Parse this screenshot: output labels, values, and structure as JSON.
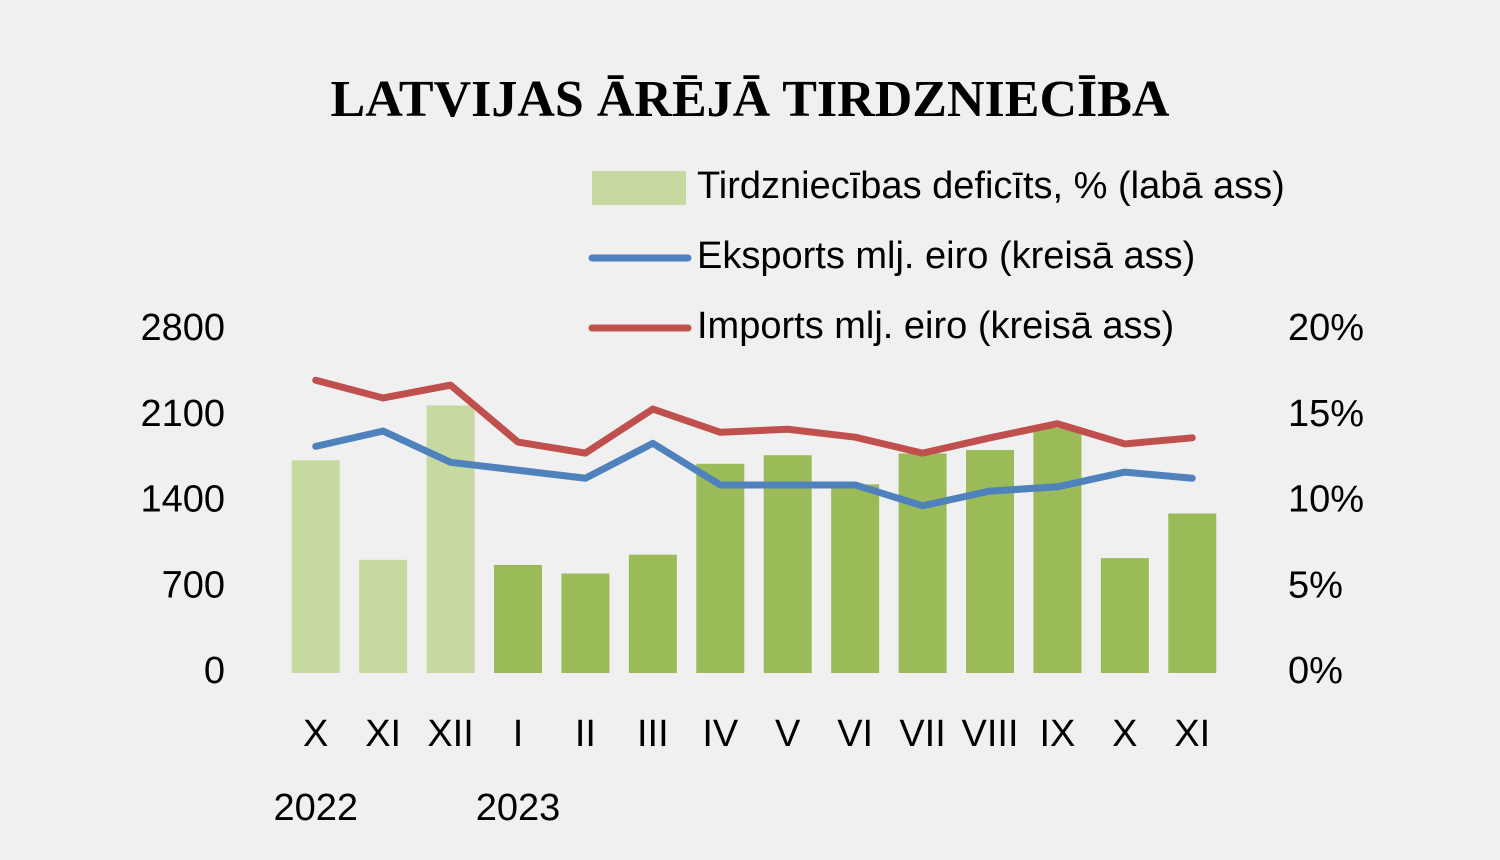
{
  "chart_data": {
    "type": "bar-line",
    "title": "LATVIJAS ĀRĒJĀ TIRDZNIECĪBA",
    "categories": [
      "X",
      "XI",
      "XII",
      "I",
      "II",
      "III",
      "IV",
      "V",
      "VI",
      "VII",
      "VIII",
      "IX",
      "X",
      "XI"
    ],
    "category_groups": [
      "2022",
      null,
      null,
      "2023",
      null,
      null,
      null,
      null,
      null,
      null,
      null,
      null,
      null,
      null
    ],
    "series": [
      {
        "name": "Tirdzniecības deficīts, % (labā ass)",
        "type": "bar",
        "axis": "y2",
        "color": "#9bbb59",
        "colors": [
          "#c6d9a0",
          "#c6d9a0",
          "#c6d9a0",
          "#9bbb59",
          "#9bbb59",
          "#9bbb59",
          "#9bbb59",
          "#9bbb59",
          "#9bbb59",
          "#9bbb59",
          "#9bbb59",
          "#9bbb59",
          "#9bbb59",
          "#9bbb59"
        ],
        "values": [
          12.4,
          6.6,
          15.6,
          6.3,
          5.8,
          6.9,
          12.2,
          12.7,
          11.0,
          12.8,
          13.0,
          14.3,
          6.7,
          9.3
        ]
      },
      {
        "name": "Eksports mlj. eiro (kreisā ass)",
        "type": "line",
        "color": "#4f81bd",
        "values": [
          1850,
          1975,
          1720,
          1655,
          1590,
          1875,
          1535,
          1535,
          1535,
          1365,
          1485,
          1520,
          1640,
          1590
        ]
      },
      {
        "name": "Imports mlj. eiro (kreisā ass)",
        "type": "line",
        "color": "#c0504d",
        "values": [
          2390,
          2245,
          2350,
          1885,
          1795,
          2155,
          1965,
          1990,
          1925,
          1795,
          1920,
          2035,
          1870,
          1920
        ]
      }
    ],
    "ylim": [
      0,
      2800
    ],
    "yticks": [
      0,
      700,
      1400,
      2100,
      2800
    ],
    "y2lim": [
      0,
      20
    ],
    "y2ticks": [
      {
        "value": 0,
        "label": "0%"
      },
      {
        "value": 5,
        "label": "5%"
      },
      {
        "value": 10,
        "label": "10%"
      },
      {
        "value": 15,
        "label": "15%"
      },
      {
        "value": 20,
        "label": "20%"
      }
    ],
    "grid": false,
    "legend": "top"
  }
}
